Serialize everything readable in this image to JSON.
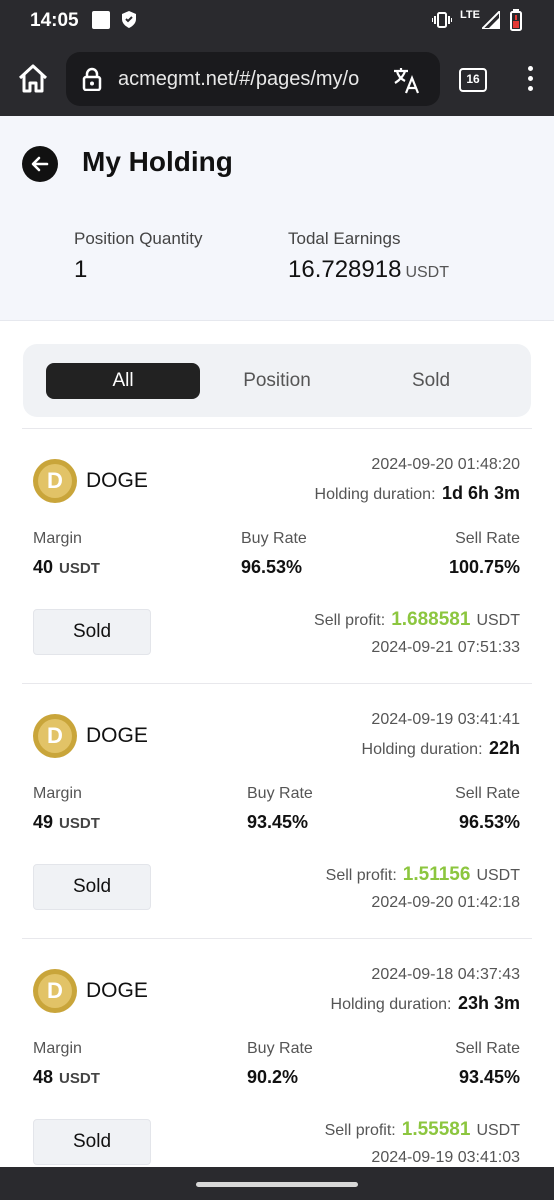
{
  "status_bar": {
    "time": "14:05",
    "network": "LTE",
    "icons": [
      "square-icon",
      "shield-icon",
      "vibrate-icon",
      "signal-icon",
      "battery-low-icon"
    ]
  },
  "browser": {
    "url": "acmegmt.net/#/pages/my/o",
    "tab_count": "16",
    "icons": [
      "home-icon",
      "lock-icon",
      "translate-icon",
      "more-vert-icon"
    ]
  },
  "header": {
    "title": "My Holding",
    "position_quantity_label": "Position Quantity",
    "position_quantity": "1",
    "total_earnings_label": "Todal Earnings",
    "total_earnings": "16.728918",
    "total_earnings_unit": "USDT"
  },
  "filters": {
    "tabs": [
      "All",
      "Position",
      "Sold"
    ],
    "active": "All"
  },
  "labels": {
    "margin": "Margin",
    "buy_rate": "Buy Rate",
    "sell_rate": "Sell Rate",
    "holding_duration": "Holding duration:",
    "sell_profit": "Sell profit:",
    "unit": "USDT",
    "sold_button": "Sold"
  },
  "holdings": [
    {
      "coin": "DOGE",
      "buy_time": "2024-09-20 01:48:20",
      "duration": "1d 6h 3m",
      "margin": "40",
      "buy_rate": "96.53%",
      "sell_rate": "100.75%",
      "profit": "1.688581",
      "sell_time": "2024-09-21 07:51:33"
    },
    {
      "coin": "DOGE",
      "buy_time": "2024-09-19 03:41:41",
      "duration": "22h",
      "margin": "49",
      "buy_rate": "93.45%",
      "sell_rate": "96.53%",
      "profit": "1.51156",
      "sell_time": "2024-09-20 01:42:18"
    },
    {
      "coin": "DOGE",
      "buy_time": "2024-09-18 04:37:43",
      "duration": "23h 3m",
      "margin": "48",
      "buy_rate": "90.2%",
      "sell_rate": "93.45%",
      "profit": "1.55581",
      "sell_time": "2024-09-19 03:41:03"
    }
  ],
  "colors": {
    "profit": "#8cc63f",
    "active_tab": "#222222",
    "header_bg": "#f4f6fb"
  }
}
